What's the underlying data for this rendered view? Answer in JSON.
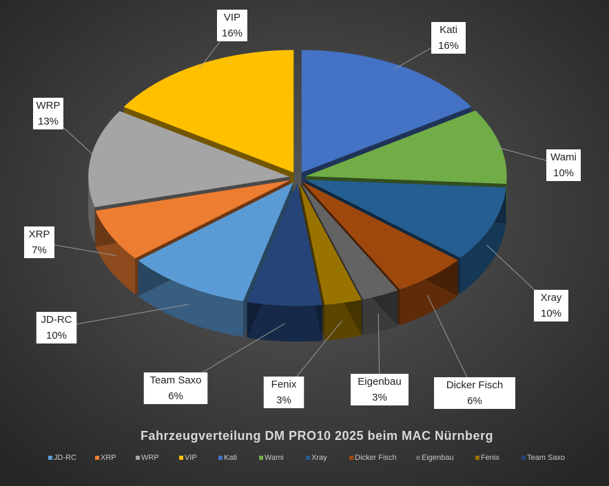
{
  "chart_data": {
    "type": "pie",
    "title": "Fahrzeugverteilung DM PRO10 2025 beim MAC Nürnberg",
    "categories": [
      "JD-RC",
      "XRP",
      "WRP",
      "VIP",
      "Kati",
      "Wami",
      "Xray",
      "Dicker Fisch",
      "Eigenbau",
      "Fenix",
      "Team Saxo"
    ],
    "values": [
      10,
      7,
      13,
      16,
      16,
      10,
      10,
      6,
      3,
      3,
      6
    ],
    "value_labels": [
      "10%",
      "7%",
      "13%",
      "16%",
      "16%",
      "10%",
      "10%",
      "6%",
      "3%",
      "3%",
      "6%"
    ],
    "colors": [
      "#5b9bd5",
      "#ed7d31",
      "#a5a5a5",
      "#ffc000",
      "#4472c4",
      "#70ad47",
      "#255e91",
      "#9e480e",
      "#636363",
      "#997300",
      "#264478"
    ],
    "legend": "bottom"
  }
}
